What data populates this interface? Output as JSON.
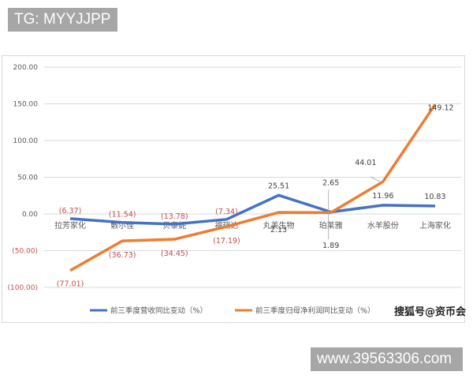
{
  "overlay": {
    "top_tag": "TG: MYYJJPP",
    "bottom_tag": "www.39563306.com",
    "watermark": "搜狐号@资币会"
  },
  "chart_data": {
    "type": "line",
    "title": "",
    "xlabel": "",
    "ylabel": "",
    "ylim": [
      -100,
      200
    ],
    "y_ticks": [
      "200.00",
      "150.00",
      "100.00",
      "50.00",
      "0.00",
      "(50.00)",
      "(100.00)"
    ],
    "grid": true,
    "legend_position": "bottom",
    "categories": [
      "拉芳家化",
      "敷尔佳",
      "贝泰妮",
      "福瑞达",
      "丸美生物",
      "珀莱雅",
      "水羊股份",
      "上海家化"
    ],
    "series": [
      {
        "name": "前三季度营收同比变动（%）",
        "color": "#4472c4",
        "values": [
          -6.37,
          -11.54,
          -13.78,
          -7.34,
          25.51,
          2.65,
          11.96,
          10.83
        ],
        "labels": [
          "(6.37)",
          "(11.54)",
          "(13.78)",
          "(7.34)",
          "25.51",
          "2.65",
          "11.96",
          "10.83"
        ]
      },
      {
        "name": "前三季度归母净利润同比变动（%）",
        "color": "#ed7d31",
        "values": [
          -77.01,
          -36.73,
          -34.45,
          -17.19,
          2.13,
          1.89,
          44.01,
          149.12
        ],
        "labels": [
          "(77.01)",
          "(36.73)",
          "(34.45)",
          "(17.19)",
          "2.13",
          "1.89",
          "44.01",
          "149.12"
        ]
      }
    ]
  }
}
